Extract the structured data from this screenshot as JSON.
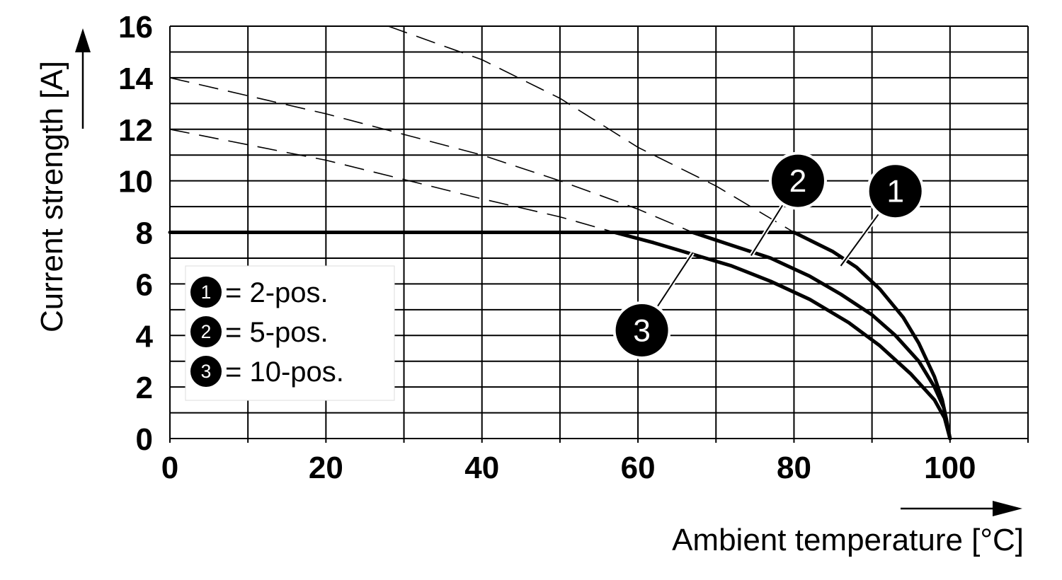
{
  "chart_data": {
    "type": "line",
    "title": "",
    "xlabel": "Ambient temperature [°C]",
    "ylabel": "Current strength [A]",
    "xlim": [
      0,
      110
    ],
    "ylim": [
      0,
      16
    ],
    "x_tick_labels": [
      "0",
      "20",
      "40",
      "60",
      "80",
      "100"
    ],
    "y_tick_labels": [
      "0",
      "2",
      "4",
      "6",
      "8",
      "10",
      "12",
      "14",
      "16"
    ],
    "grid": true,
    "legend_position": "bottom-left",
    "legend": [
      {
        "marker": "1",
        "label": "= 2-pos."
      },
      {
        "marker": "2",
        "label": "= 5-pos."
      },
      {
        "marker": "3",
        "label": "= 10-pos."
      }
    ],
    "series": [
      {
        "marker": "1",
        "points": [
          [
            0,
            8
          ],
          [
            80,
            8
          ],
          [
            82,
            7.7
          ],
          [
            85,
            7.25
          ],
          [
            88,
            6.65
          ],
          [
            91,
            5.8
          ],
          [
            94,
            4.7
          ],
          [
            96,
            3.7
          ],
          [
            98,
            2.4
          ],
          [
            99,
            1.5
          ],
          [
            99.5,
            0.8
          ],
          [
            100,
            0
          ]
        ],
        "dashed_extension": [
          [
            28,
            16
          ],
          [
            40,
            14.7
          ],
          [
            50,
            13.2
          ],
          [
            60,
            11.3
          ],
          [
            70,
            9.8
          ],
          [
            80,
            8
          ]
        ]
      },
      {
        "marker": "2",
        "points": [
          [
            67,
            8
          ],
          [
            72,
            7.5
          ],
          [
            77,
            7
          ],
          [
            82,
            6.3
          ],
          [
            86,
            5.6
          ],
          [
            90,
            4.8
          ],
          [
            93,
            4
          ],
          [
            96,
            3
          ],
          [
            98,
            2
          ],
          [
            99.2,
            1.2
          ],
          [
            100,
            0
          ]
        ],
        "dashed_extension": [
          [
            0,
            14
          ],
          [
            20,
            12.6
          ],
          [
            40,
            11
          ],
          [
            50,
            10
          ],
          [
            60,
            8.9
          ],
          [
            67,
            8
          ]
        ]
      },
      {
        "marker": "3",
        "points": [
          [
            57,
            8
          ],
          [
            62,
            7.6
          ],
          [
            67,
            7.15
          ],
          [
            72,
            6.7
          ],
          [
            77,
            6.1
          ],
          [
            82,
            5.4
          ],
          [
            87,
            4.5
          ],
          [
            91,
            3.6
          ],
          [
            95,
            2.5
          ],
          [
            98,
            1.5
          ],
          [
            99.3,
            0.8
          ],
          [
            100,
            0
          ]
        ],
        "dashed_extension": [
          [
            0,
            12
          ],
          [
            20,
            10.8
          ],
          [
            40,
            9.3
          ],
          [
            50,
            8.6
          ],
          [
            57,
            8
          ]
        ]
      }
    ],
    "callouts": [
      {
        "marker": "1",
        "at": [
          86,
          6.7
        ],
        "badge": [
          93,
          9.6
        ]
      },
      {
        "marker": "2",
        "at": [
          74.5,
          7.1
        ],
        "badge": [
          80.5,
          10
        ]
      },
      {
        "marker": "3",
        "at": [
          67,
          7.2
        ],
        "badge": [
          60.5,
          4.2
        ]
      }
    ]
  }
}
